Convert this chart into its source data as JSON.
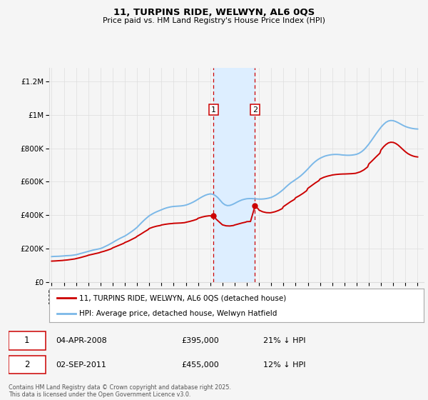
{
  "title": "11, TURPINS RIDE, WELWYN, AL6 0QS",
  "subtitle": "Price paid vs. HM Land Registry's House Price Index (HPI)",
  "ylabel_ticks": [
    "£0",
    "£200K",
    "£400K",
    "£600K",
    "£800K",
    "£1M",
    "£1.2M"
  ],
  "ytick_values": [
    0,
    200000,
    400000,
    600000,
    800000,
    1000000,
    1200000
  ],
  "ylim": [
    0,
    1280000
  ],
  "xlim_start": 1994.8,
  "xlim_end": 2025.5,
  "purchase1_date": 2008.27,
  "purchase1_price_val": 395000,
  "purchase1_price": "£395,000",
  "purchase1_pct": "21% ↓ HPI",
  "purchase1_date_str": "04-APR-2008",
  "purchase2_date": 2011.67,
  "purchase2_price_val": 455000,
  "purchase2_price": "£455,000",
  "purchase2_pct": "12% ↓ HPI",
  "purchase2_date_str": "02-SEP-2011",
  "hpi_color": "#7bb8e8",
  "price_color": "#cc0000",
  "shading_color": "#ddeeff",
  "background_color": "#f5f5f5",
  "grid_color": "#dddddd",
  "legend_label_price": "11, TURPINS RIDE, WELWYN, AL6 0QS (detached house)",
  "legend_label_hpi": "HPI: Average price, detached house, Welwyn Hatfield",
  "footnote": "Contains HM Land Registry data © Crown copyright and database right 2025.\nThis data is licensed under the Open Government Licence v3.0.",
  "hpi_data": [
    [
      1995.0,
      152000
    ],
    [
      1995.2,
      153000
    ],
    [
      1995.4,
      153500
    ],
    [
      1995.6,
      154000
    ],
    [
      1995.8,
      155000
    ],
    [
      1996.0,
      156000
    ],
    [
      1996.2,
      157500
    ],
    [
      1996.4,
      158000
    ],
    [
      1996.6,
      159000
    ],
    [
      1996.8,
      161000
    ],
    [
      1997.0,
      163000
    ],
    [
      1997.2,
      167000
    ],
    [
      1997.4,
      171000
    ],
    [
      1997.6,
      175000
    ],
    [
      1997.8,
      179000
    ],
    [
      1998.0,
      183000
    ],
    [
      1998.2,
      187000
    ],
    [
      1998.4,
      191000
    ],
    [
      1998.6,
      194000
    ],
    [
      1998.8,
      197000
    ],
    [
      1999.0,
      200000
    ],
    [
      1999.2,
      206000
    ],
    [
      1999.4,
      213000
    ],
    [
      1999.6,
      220000
    ],
    [
      1999.8,
      228000
    ],
    [
      2000.0,
      236000
    ],
    [
      2000.2,
      245000
    ],
    [
      2000.4,
      253000
    ],
    [
      2000.6,
      261000
    ],
    [
      2000.8,
      268000
    ],
    [
      2001.0,
      275000
    ],
    [
      2001.2,
      284000
    ],
    [
      2001.4,
      294000
    ],
    [
      2001.6,
      304000
    ],
    [
      2001.8,
      315000
    ],
    [
      2002.0,
      327000
    ],
    [
      2002.2,
      342000
    ],
    [
      2002.4,
      357000
    ],
    [
      2002.6,
      371000
    ],
    [
      2002.8,
      384000
    ],
    [
      2003.0,
      396000
    ],
    [
      2003.2,
      405000
    ],
    [
      2003.4,
      413000
    ],
    [
      2003.6,
      420000
    ],
    [
      2003.8,
      426000
    ],
    [
      2004.0,
      432000
    ],
    [
      2004.2,
      438000
    ],
    [
      2004.4,
      443000
    ],
    [
      2004.6,
      447000
    ],
    [
      2004.8,
      450000
    ],
    [
      2005.0,
      452000
    ],
    [
      2005.2,
      453000
    ],
    [
      2005.4,
      454000
    ],
    [
      2005.6,
      455000
    ],
    [
      2005.8,
      457000
    ],
    [
      2006.0,
      460000
    ],
    [
      2006.2,
      465000
    ],
    [
      2006.4,
      471000
    ],
    [
      2006.6,
      478000
    ],
    [
      2006.8,
      486000
    ],
    [
      2007.0,
      495000
    ],
    [
      2007.2,
      504000
    ],
    [
      2007.4,
      512000
    ],
    [
      2007.6,
      519000
    ],
    [
      2007.8,
      524000
    ],
    [
      2008.0,
      527000
    ],
    [
      2008.2,
      525000
    ],
    [
      2008.4,
      518000
    ],
    [
      2008.6,
      506000
    ],
    [
      2008.8,
      490000
    ],
    [
      2009.0,
      473000
    ],
    [
      2009.2,
      462000
    ],
    [
      2009.4,
      457000
    ],
    [
      2009.6,
      458000
    ],
    [
      2009.8,
      463000
    ],
    [
      2010.0,
      470000
    ],
    [
      2010.2,
      478000
    ],
    [
      2010.4,
      485000
    ],
    [
      2010.6,
      491000
    ],
    [
      2010.8,
      495000
    ],
    [
      2011.0,
      498000
    ],
    [
      2011.2,
      499000
    ],
    [
      2011.4,
      499000
    ],
    [
      2011.6,
      498000
    ],
    [
      2011.8,
      497000
    ],
    [
      2012.0,
      496000
    ],
    [
      2012.2,
      496000
    ],
    [
      2012.4,
      497000
    ],
    [
      2012.6,
      499000
    ],
    [
      2012.8,
      502000
    ],
    [
      2013.0,
      506000
    ],
    [
      2013.2,
      513000
    ],
    [
      2013.4,
      521000
    ],
    [
      2013.6,
      531000
    ],
    [
      2013.8,
      542000
    ],
    [
      2014.0,
      554000
    ],
    [
      2014.2,
      568000
    ],
    [
      2014.4,
      581000
    ],
    [
      2014.6,
      593000
    ],
    [
      2014.8,
      603000
    ],
    [
      2015.0,
      613000
    ],
    [
      2015.2,
      623000
    ],
    [
      2015.4,
      634000
    ],
    [
      2015.6,
      647000
    ],
    [
      2015.8,
      661000
    ],
    [
      2016.0,
      676000
    ],
    [
      2016.2,
      692000
    ],
    [
      2016.4,
      707000
    ],
    [
      2016.6,
      720000
    ],
    [
      2016.8,
      731000
    ],
    [
      2017.0,
      740000
    ],
    [
      2017.2,
      747000
    ],
    [
      2017.4,
      753000
    ],
    [
      2017.6,
      757000
    ],
    [
      2017.8,
      760000
    ],
    [
      2018.0,
      762000
    ],
    [
      2018.2,
      763000
    ],
    [
      2018.4,
      763000
    ],
    [
      2018.6,
      762000
    ],
    [
      2018.8,
      760000
    ],
    [
      2019.0,
      759000
    ],
    [
      2019.2,
      758000
    ],
    [
      2019.4,
      758000
    ],
    [
      2019.6,
      759000
    ],
    [
      2019.8,
      761000
    ],
    [
      2020.0,
      764000
    ],
    [
      2020.2,
      770000
    ],
    [
      2020.4,
      779000
    ],
    [
      2020.6,
      791000
    ],
    [
      2020.8,
      807000
    ],
    [
      2021.0,
      825000
    ],
    [
      2021.2,
      845000
    ],
    [
      2021.4,
      866000
    ],
    [
      2021.6,
      887000
    ],
    [
      2021.8,
      907000
    ],
    [
      2022.0,
      926000
    ],
    [
      2022.2,
      942000
    ],
    [
      2022.4,
      955000
    ],
    [
      2022.6,
      963000
    ],
    [
      2022.8,
      966000
    ],
    [
      2023.0,
      965000
    ],
    [
      2023.2,
      960000
    ],
    [
      2023.4,
      953000
    ],
    [
      2023.6,
      945000
    ],
    [
      2023.8,
      937000
    ],
    [
      2024.0,
      930000
    ],
    [
      2024.2,
      925000
    ],
    [
      2024.4,
      921000
    ],
    [
      2024.6,
      918000
    ],
    [
      2024.8,
      916000
    ],
    [
      2025.0,
      915000
    ]
  ],
  "price_data": [
    [
      1995.0,
      125000
    ],
    [
      1995.3,
      126000
    ],
    [
      1995.6,
      127500
    ],
    [
      1995.9,
      129000
    ],
    [
      1996.0,
      130000
    ],
    [
      1996.3,
      132000
    ],
    [
      1996.6,
      135000
    ],
    [
      1996.9,
      138000
    ],
    [
      1997.0,
      140000
    ],
    [
      1997.3,
      145000
    ],
    [
      1997.6,
      151000
    ],
    [
      1997.9,
      157000
    ],
    [
      1998.0,
      160000
    ],
    [
      1998.3,
      165000
    ],
    [
      1998.6,
      170000
    ],
    [
      1998.9,
      175000
    ],
    [
      1999.0,
      178000
    ],
    [
      1999.3,
      184000
    ],
    [
      1999.6,
      191000
    ],
    [
      1999.9,
      199000
    ],
    [
      2000.0,
      204000
    ],
    [
      2000.3,
      213000
    ],
    [
      2000.6,
      222000
    ],
    [
      2000.9,
      231000
    ],
    [
      2001.0,
      236000
    ],
    [
      2001.3,
      245000
    ],
    [
      2001.6,
      256000
    ],
    [
      2001.9,
      267000
    ],
    [
      2002.0,
      273000
    ],
    [
      2002.3,
      286000
    ],
    [
      2002.6,
      300000
    ],
    [
      2002.9,
      313000
    ],
    [
      2003.0,
      320000
    ],
    [
      2003.3,
      328000
    ],
    [
      2003.6,
      334000
    ],
    [
      2003.9,
      338000
    ],
    [
      2004.0,
      341000
    ],
    [
      2004.3,
      345000
    ],
    [
      2004.6,
      348000
    ],
    [
      2004.9,
      350000
    ],
    [
      2005.0,
      351000
    ],
    [
      2005.3,
      352000
    ],
    [
      2005.6,
      353000
    ],
    [
      2005.9,
      355000
    ],
    [
      2006.0,
      357000
    ],
    [
      2006.3,
      362000
    ],
    [
      2006.6,
      368000
    ],
    [
      2006.9,
      375000
    ],
    [
      2007.0,
      381000
    ],
    [
      2007.3,
      388000
    ],
    [
      2007.6,
      393000
    ],
    [
      2007.9,
      396000
    ],
    [
      2008.27,
      395000
    ],
    [
      2008.5,
      375000
    ],
    [
      2008.8,
      355000
    ],
    [
      2009.0,
      342000
    ],
    [
      2009.3,
      336000
    ],
    [
      2009.6,
      335000
    ],
    [
      2009.9,
      338000
    ],
    [
      2010.0,
      341000
    ],
    [
      2010.3,
      347000
    ],
    [
      2010.6,
      353000
    ],
    [
      2010.9,
      358000
    ],
    [
      2011.0,
      361000
    ],
    [
      2011.3,
      362000
    ],
    [
      2011.67,
      455000
    ],
    [
      2011.9,
      440000
    ],
    [
      2012.0,
      430000
    ],
    [
      2012.3,
      420000
    ],
    [
      2012.6,
      415000
    ],
    [
      2012.9,
      414000
    ],
    [
      2013.0,
      415000
    ],
    [
      2013.3,
      420000
    ],
    [
      2013.6,
      428000
    ],
    [
      2013.9,
      439000
    ],
    [
      2014.0,
      451000
    ],
    [
      2014.3,
      466000
    ],
    [
      2014.6,
      481000
    ],
    [
      2014.9,
      494000
    ],
    [
      2015.0,
      504000
    ],
    [
      2015.3,
      516000
    ],
    [
      2015.6,
      530000
    ],
    [
      2015.9,
      546000
    ],
    [
      2016.0,
      560000
    ],
    [
      2016.3,
      576000
    ],
    [
      2016.6,
      592000
    ],
    [
      2016.9,
      606000
    ],
    [
      2017.0,
      616000
    ],
    [
      2017.3,
      626000
    ],
    [
      2017.6,
      633000
    ],
    [
      2017.9,
      638000
    ],
    [
      2018.0,
      640000
    ],
    [
      2018.3,
      643000
    ],
    [
      2018.6,
      645000
    ],
    [
      2018.9,
      646000
    ],
    [
      2019.0,
      646000
    ],
    [
      2019.3,
      647000
    ],
    [
      2019.6,
      648000
    ],
    [
      2019.9,
      650000
    ],
    [
      2020.0,
      652000
    ],
    [
      2020.3,
      659000
    ],
    [
      2020.6,
      671000
    ],
    [
      2020.9,
      688000
    ],
    [
      2021.0,
      706000
    ],
    [
      2021.3,
      727000
    ],
    [
      2021.6,
      749000
    ],
    [
      2021.9,
      770000
    ],
    [
      2022.0,
      790000
    ],
    [
      2022.2,
      808000
    ],
    [
      2022.4,
      822000
    ],
    [
      2022.6,
      832000
    ],
    [
      2022.8,
      836000
    ],
    [
      2023.0,
      835000
    ],
    [
      2023.2,
      829000
    ],
    [
      2023.4,
      819000
    ],
    [
      2023.6,
      806000
    ],
    [
      2023.8,
      792000
    ],
    [
      2024.0,
      779000
    ],
    [
      2024.2,
      768000
    ],
    [
      2024.4,
      760000
    ],
    [
      2024.6,
      754000
    ],
    [
      2024.8,
      750000
    ],
    [
      2025.0,
      748000
    ]
  ]
}
